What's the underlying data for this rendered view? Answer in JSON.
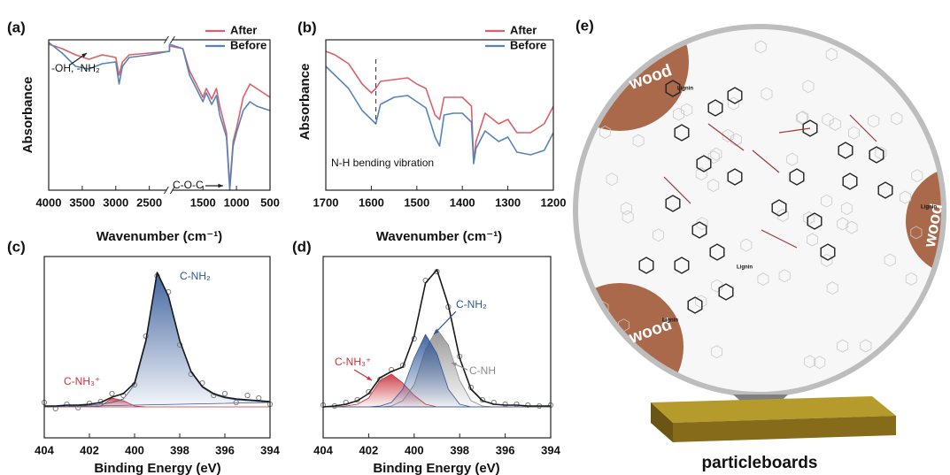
{
  "chart_data": [
    {
      "type": "line",
      "panel_label": "(a)",
      "xlabel": "Wavenumber (cm⁻¹)",
      "ylabel": "Absorbance",
      "x": [
        4000,
        3800,
        3600,
        3400,
        3200,
        3000,
        2950,
        2900,
        2800,
        2500,
        2200,
        2000,
        1800,
        1700,
        1600,
        1500,
        1450,
        1370,
        1300,
        1250,
        1150,
        1100,
        1050,
        1000,
        900,
        800,
        700,
        500
      ],
      "xlim": [
        4000,
        500
      ],
      "xbreak": [
        2200,
        2000
      ],
      "xticks": [
        4000,
        3500,
        3000,
        2500,
        1500,
        1000,
        500
      ],
      "ylim": [
        0,
        170
      ],
      "legend": true,
      "series": [
        {
          "name": "After",
          "color": "#d9616b",
          "values": [
            165,
            160,
            153,
            148,
            153,
            150,
            130,
            145,
            153,
            155,
            157,
            163,
            160,
            135,
            120,
            105,
            115,
            103,
            115,
            95,
            65,
            5,
            55,
            70,
            105,
            120,
            115,
            105
          ]
        },
        {
          "name": "Before",
          "color": "#5585b8",
          "values": [
            167,
            155,
            140,
            137,
            143,
            145,
            120,
            140,
            150,
            153,
            157,
            165,
            160,
            130,
            115,
            100,
            110,
            97,
            107,
            85,
            60,
            0,
            50,
            65,
            90,
            100,
            95,
            90
          ]
        }
      ],
      "annotations": [
        "-OH, -NH₂",
        "C-O-C"
      ]
    },
    {
      "type": "line",
      "panel_label": "(b)",
      "xlabel": "Wavenumber (cm⁻¹)",
      "ylabel": "Absorbance",
      "x": [
        1700,
        1680,
        1650,
        1620,
        1600,
        1590,
        1580,
        1550,
        1520,
        1500,
        1480,
        1460,
        1450,
        1440,
        1420,
        1400,
        1380,
        1375,
        1370,
        1350,
        1320,
        1300,
        1280,
        1250,
        1220,
        1200
      ],
      "xlim": [
        1700,
        1200
      ],
      "xticks": [
        1700,
        1600,
        1500,
        1400,
        1300,
        1200
      ],
      "ylim": [
        0,
        170
      ],
      "legend": true,
      "marker_x": 1590,
      "series": [
        {
          "name": "After",
          "color": "#d9616b",
          "values": [
            157,
            153,
            143,
            120,
            110,
            115,
            123,
            125,
            127,
            120,
            115,
            85,
            80,
            105,
            105,
            105,
            95,
            32,
            55,
            87,
            75,
            80,
            65,
            65,
            75,
            95
          ]
        },
        {
          "name": "Before",
          "color": "#5585b8",
          "values": [
            140,
            130,
            115,
            90,
            80,
            75,
            97,
            105,
            107,
            100,
            93,
            60,
            50,
            85,
            87,
            87,
            77,
            30,
            47,
            67,
            55,
            60,
            43,
            40,
            45,
            65
          ]
        }
      ],
      "annotations": [
        "N-H bending vibration"
      ]
    },
    {
      "type": "line",
      "panel_label": "(c)",
      "xlabel": "Binding Energy (eV)",
      "x": [
        404,
        403.5,
        403,
        402.5,
        402,
        401.5,
        401,
        400.5,
        400,
        399.5,
        399,
        398.5,
        398,
        397.5,
        397,
        396.5,
        396,
        395.5,
        395,
        394.5,
        394
      ],
      "xlim": [
        404,
        394
      ],
      "xticks": [
        404,
        402,
        400,
        398,
        396,
        394
      ],
      "ylim": [
        0,
        205
      ],
      "legend": false,
      "series": [
        {
          "name": "C-NH₃⁺",
          "color": "#c9303a",
          "fill": true,
          "values": [
            35,
            35,
            35,
            35,
            35,
            36,
            45,
            42,
            36,
            35,
            35,
            35,
            35,
            35,
            35,
            35,
            35,
            35,
            35,
            35,
            35
          ]
        },
        {
          "name": "C-NH₂",
          "color": "#2f5597",
          "fill": true,
          "values": [
            35,
            35,
            36,
            36,
            37,
            38,
            40,
            44,
            60,
            108,
            186,
            159,
            109,
            74,
            57,
            49,
            45,
            43,
            42,
            41,
            40
          ]
        },
        {
          "color": "#808080",
          "marker": "circle",
          "values": [
            40,
            33,
            38,
            34,
            39,
            41,
            50,
            48,
            60,
            115,
            183,
            165,
            105,
            72,
            62,
            48,
            50,
            40,
            48,
            45,
            38
          ]
        },
        {
          "color": "#1a1a1a",
          "values": [
            36,
            36,
            37,
            37,
            38,
            40,
            46,
            50,
            62,
            110,
            187,
            160,
            110,
            75,
            58,
            50,
            46,
            44,
            43,
            42,
            41
          ]
        }
      ]
    },
    {
      "type": "line",
      "panel_label": "(d)",
      "xlabel": "Binding Energy (eV)",
      "x": [
        404,
        403.5,
        403,
        402.5,
        402,
        401.5,
        401,
        400.5,
        400,
        399.5,
        399,
        398.5,
        398,
        397.5,
        397,
        396.5,
        396,
        395.5,
        395,
        394.5,
        394
      ],
      "xlim": [
        404,
        394
      ],
      "xticks": [
        404,
        402,
        400,
        398,
        396,
        394
      ],
      "ylim": [
        0,
        205
      ],
      "legend": false,
      "series": [
        {
          "name": "C-NH₃⁺",
          "color": "#c9303a",
          "fill": true,
          "values": [
            35,
            35,
            36,
            38,
            45,
            65,
            72,
            62,
            48,
            38,
            35,
            35,
            35,
            35,
            35,
            35,
            35,
            35,
            35,
            35,
            35
          ]
        },
        {
          "name": "C-NH",
          "color": "#8c8c8c",
          "fill": true,
          "values": [
            35,
            35,
            35,
            35,
            35,
            35,
            36,
            42,
            60,
            100,
            123,
            105,
            65,
            42,
            36,
            35,
            35,
            35,
            35,
            35,
            35
          ]
        },
        {
          "name": "C-NH₂",
          "color": "#2f5597",
          "fill": true,
          "values": [
            35,
            35,
            35,
            35,
            35,
            36,
            40,
            55,
            90,
            117,
            95,
            55,
            38,
            35,
            35,
            35,
            35,
            35,
            35,
            35,
            35
          ]
        },
        {
          "color": "#808080",
          "marker": "circle",
          "values": [
            37,
            36,
            40,
            43,
            52,
            66,
            77,
            82,
            112,
            178,
            188,
            148,
            92,
            57,
            43,
            40,
            38,
            38,
            37,
            36,
            37
          ]
        },
        {
          "color": "#1a1a1a",
          "values": [
            35,
            36,
            38,
            42,
            50,
            68,
            75,
            80,
            115,
            175,
            190,
            150,
            90,
            55,
            42,
            38,
            37,
            37,
            36,
            36,
            36
          ]
        }
      ]
    }
  ],
  "panel_e": {
    "label": "(e)",
    "wood": [
      "wood",
      "wood",
      "wood"
    ],
    "lignin": [
      "Lignin",
      "Lignin",
      "Lignin",
      "Lignin"
    ],
    "caption": "particleboards"
  }
}
